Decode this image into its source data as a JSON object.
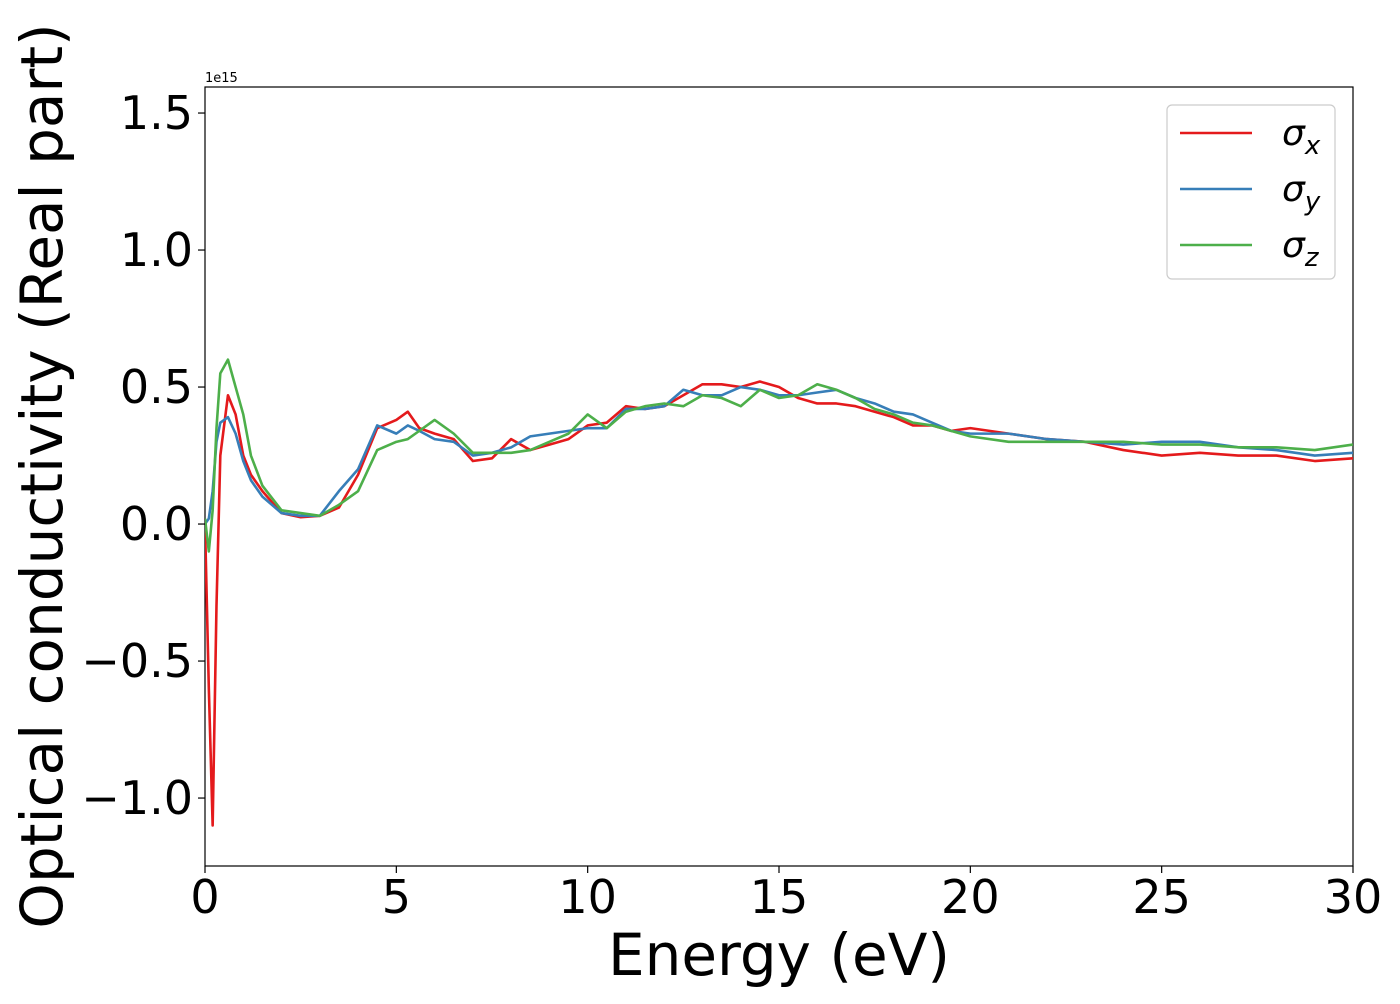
{
  "chart_data": {
    "type": "line",
    "xlabel": "Energy (eV)",
    "ylabel": "Optical conductivity (Real part)",
    "y_offset_label": "1e15",
    "x": [
      0,
      0.1,
      0.2,
      0.3,
      0.4,
      0.6,
      0.8,
      1,
      1.2,
      1.5,
      2,
      2.5,
      3,
      3.5,
      4,
      4.5,
      5,
      5.3,
      5.6,
      6,
      6.5,
      7,
      7.5,
      8,
      8.5,
      9,
      9.5,
      10,
      10.5,
      11,
      11.5,
      12,
      12.5,
      13,
      13.5,
      14,
      14.5,
      15,
      15.5,
      16,
      16.5,
      17,
      17.5,
      18,
      18.5,
      19,
      19.5,
      20,
      21,
      22,
      23,
      24,
      25,
      26,
      27,
      28,
      29,
      30
    ],
    "series": [
      {
        "name": "σx",
        "color": "#e41a1c",
        "values": [
          0,
          -0.6,
          -1.1,
          -0.3,
          0.25,
          0.47,
          0.4,
          0.25,
          0.18,
          0.12,
          0.04,
          0.025,
          0.03,
          0.06,
          0.18,
          0.35,
          0.38,
          0.41,
          0.35,
          0.33,
          0.31,
          0.23,
          0.24,
          0.31,
          0.27,
          0.29,
          0.31,
          0.36,
          0.37,
          0.43,
          0.42,
          0.43,
          0.47,
          0.51,
          0.51,
          0.5,
          0.52,
          0.5,
          0.46,
          0.44,
          0.44,
          0.43,
          0.41,
          0.39,
          0.36,
          0.36,
          0.34,
          0.35,
          0.33,
          0.31,
          0.3,
          0.27,
          0.25,
          0.26,
          0.25,
          0.25,
          0.23,
          0.24
        ]
      },
      {
        "name": "σy",
        "color": "#377eb8",
        "values": [
          0,
          0.02,
          0.12,
          0.3,
          0.37,
          0.39,
          0.33,
          0.23,
          0.16,
          0.1,
          0.04,
          0.03,
          0.03,
          0.12,
          0.2,
          0.36,
          0.33,
          0.36,
          0.34,
          0.31,
          0.3,
          0.25,
          0.26,
          0.28,
          0.32,
          0.33,
          0.34,
          0.35,
          0.35,
          0.42,
          0.42,
          0.43,
          0.49,
          0.47,
          0.47,
          0.5,
          0.49,
          0.47,
          0.47,
          0.48,
          0.49,
          0.46,
          0.44,
          0.41,
          0.4,
          0.37,
          0.34,
          0.33,
          0.33,
          0.31,
          0.3,
          0.29,
          0.3,
          0.3,
          0.28,
          0.27,
          0.25,
          0.26
        ]
      },
      {
        "name": "σz",
        "color": "#4daf4a",
        "values": [
          0.02,
          -0.1,
          0.05,
          0.35,
          0.55,
          0.6,
          0.5,
          0.4,
          0.25,
          0.14,
          0.05,
          0.04,
          0.03,
          0.07,
          0.12,
          0.27,
          0.3,
          0.31,
          0.34,
          0.38,
          0.33,
          0.26,
          0.26,
          0.26,
          0.27,
          0.3,
          0.33,
          0.4,
          0.35,
          0.41,
          0.43,
          0.44,
          0.43,
          0.47,
          0.46,
          0.43,
          0.49,
          0.46,
          0.47,
          0.51,
          0.49,
          0.46,
          0.42,
          0.4,
          0.37,
          0.36,
          0.34,
          0.32,
          0.3,
          0.3,
          0.3,
          0.3,
          0.29,
          0.29,
          0.28,
          0.28,
          0.27,
          0.29
        ]
      }
    ],
    "xlim": [
      0,
      30
    ],
    "xticks": [
      0,
      5,
      10,
      15,
      20,
      25,
      30
    ],
    "ylim": [
      -1.248,
      1.595
    ],
    "yticks": [
      {
        "value": -1.0,
        "label": "−1.0"
      },
      {
        "value": -0.5,
        "label": "−0.5"
      },
      {
        "value": 0,
        "label": "0.0"
      },
      0.5,
      {
        "value": 1.0,
        "label": "1.0"
      },
      1.5
    ],
    "grid": false,
    "legend": "upper-right"
  }
}
